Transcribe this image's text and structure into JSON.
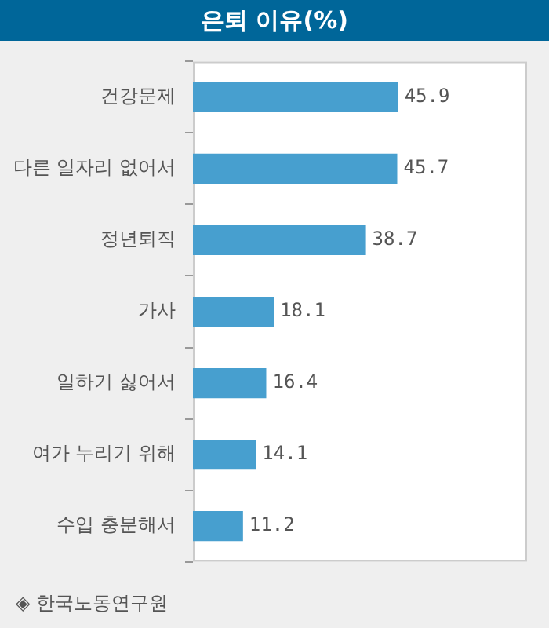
{
  "chart_data": {
    "type": "bar",
    "orientation": "horizontal",
    "title": "은퇴 이유(%)",
    "categories": [
      "건강문제",
      "다른 일자리 없어서",
      "정년퇴직",
      "가사",
      "일하기 싫어서",
      "여가 누리기 위해",
      "수입 충분해서"
    ],
    "values": [
      45.9,
      45.7,
      38.7,
      18.1,
      16.4,
      14.1,
      11.2
    ],
    "color": "#479fcf",
    "data_labels": true,
    "grid": false,
    "legend": false,
    "annotations": [
      "◈ 한국노동연구원"
    ]
  }
}
